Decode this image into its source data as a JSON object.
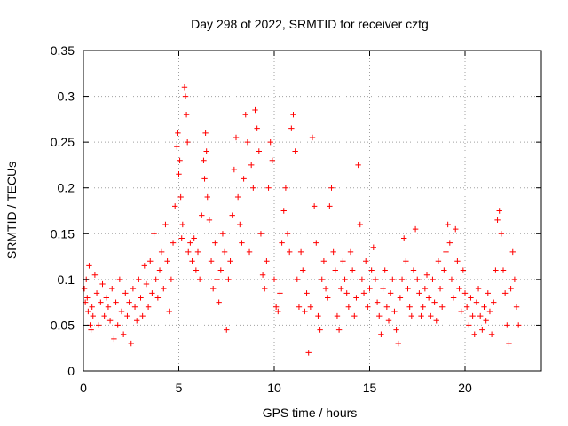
{
  "chart_data": {
    "type": "scatter",
    "title": "Day 298 of 2022, SRMTID for receiver cztg",
    "xlabel": "GPS time / hours",
    "ylabel": "SRMTID / TECUs",
    "xlim": [
      0,
      24
    ],
    "ylim": [
      0,
      0.35
    ],
    "xticks": [
      0,
      5,
      10,
      15,
      20
    ],
    "xtick_labels": [
      "0",
      "5",
      "10",
      "15",
      "20"
    ],
    "yticks": [
      0,
      0.05,
      0.1,
      0.15,
      0.2,
      0.25,
      0.3,
      0.35
    ],
    "ytick_labels": [
      "0",
      "0.05",
      "0.1",
      "0.15",
      "0.2",
      "0.25",
      "0.3",
      "0.35"
    ],
    "grid": true,
    "marker": "+",
    "series": [
      {
        "name": "SRMTID",
        "color": "#ff0000",
        "points": [
          [
            0.05,
            0.09
          ],
          [
            0.1,
            0.075
          ],
          [
            0.15,
            0.1
          ],
          [
            0.2,
            0.08
          ],
          [
            0.25,
            0.065
          ],
          [
            0.3,
            0.115
          ],
          [
            0.35,
            0.05
          ],
          [
            0.4,
            0.045
          ],
          [
            0.45,
            0.07
          ],
          [
            0.5,
            0.06
          ],
          [
            0.6,
            0.105
          ],
          [
            0.7,
            0.085
          ],
          [
            0.8,
            0.05
          ],
          [
            0.9,
            0.075
          ],
          [
            1.0,
            0.095
          ],
          [
            1.1,
            0.06
          ],
          [
            1.2,
            0.08
          ],
          [
            1.3,
            0.07
          ],
          [
            1.4,
            0.055
          ],
          [
            1.5,
            0.09
          ],
          [
            1.6,
            0.035
          ],
          [
            1.7,
            0.075
          ],
          [
            1.8,
            0.05
          ],
          [
            1.9,
            0.1
          ],
          [
            2.0,
            0.065
          ],
          [
            2.1,
            0.04
          ],
          [
            2.2,
            0.085
          ],
          [
            2.3,
            0.06
          ],
          [
            2.4,
            0.075
          ],
          [
            2.5,
            0.03
          ],
          [
            2.6,
            0.09
          ],
          [
            2.7,
            0.07
          ],
          [
            2.8,
            0.055
          ],
          [
            2.9,
            0.1
          ],
          [
            3.0,
            0.08
          ],
          [
            3.1,
            0.06
          ],
          [
            3.2,
            0.115
          ],
          [
            3.3,
            0.095
          ],
          [
            3.4,
            0.07
          ],
          [
            3.5,
            0.12
          ],
          [
            3.6,
            0.085
          ],
          [
            3.7,
            0.15
          ],
          [
            3.8,
            0.1
          ],
          [
            3.9,
            0.08
          ],
          [
            4.0,
            0.11
          ],
          [
            4.1,
            0.13
          ],
          [
            4.2,
            0.09
          ],
          [
            4.3,
            0.16
          ],
          [
            4.4,
            0.12
          ],
          [
            4.5,
            0.065
          ],
          [
            4.6,
            0.1
          ],
          [
            4.7,
            0.14
          ],
          [
            4.8,
            0.18
          ],
          [
            4.9,
            0.245
          ],
          [
            4.95,
            0.26
          ],
          [
            5.0,
            0.215
          ],
          [
            5.05,
            0.23
          ],
          [
            5.1,
            0.19
          ],
          [
            5.15,
            0.145
          ],
          [
            5.2,
            0.16
          ],
          [
            5.3,
            0.31
          ],
          [
            5.35,
            0.3
          ],
          [
            5.4,
            0.28
          ],
          [
            5.45,
            0.25
          ],
          [
            5.5,
            0.13
          ],
          [
            5.6,
            0.14
          ],
          [
            5.7,
            0.12
          ],
          [
            5.8,
            0.145
          ],
          [
            5.9,
            0.11
          ],
          [
            6.0,
            0.13
          ],
          [
            6.1,
            0.1
          ],
          [
            6.2,
            0.17
          ],
          [
            6.3,
            0.23
          ],
          [
            6.35,
            0.21
          ],
          [
            6.4,
            0.26
          ],
          [
            6.45,
            0.24
          ],
          [
            6.5,
            0.19
          ],
          [
            6.6,
            0.165
          ],
          [
            6.7,
            0.12
          ],
          [
            6.8,
            0.09
          ],
          [
            6.9,
            0.14
          ],
          [
            7.0,
            0.1
          ],
          [
            7.1,
            0.075
          ],
          [
            7.2,
            0.11
          ],
          [
            7.3,
            0.15
          ],
          [
            7.4,
            0.13
          ],
          [
            7.5,
            0.045
          ],
          [
            7.6,
            0.1
          ],
          [
            7.7,
            0.12
          ],
          [
            7.8,
            0.17
          ],
          [
            7.9,
            0.22
          ],
          [
            8.0,
            0.255
          ],
          [
            8.1,
            0.19
          ],
          [
            8.2,
            0.16
          ],
          [
            8.3,
            0.14
          ],
          [
            8.4,
            0.21
          ],
          [
            8.5,
            0.28
          ],
          [
            8.6,
            0.25
          ],
          [
            8.7,
            0.13
          ],
          [
            8.8,
            0.225
          ],
          [
            8.9,
            0.2
          ],
          [
            9.0,
            0.285
          ],
          [
            9.1,
            0.265
          ],
          [
            9.2,
            0.24
          ],
          [
            9.3,
            0.15
          ],
          [
            9.4,
            0.105
          ],
          [
            9.5,
            0.09
          ],
          [
            9.6,
            0.12
          ],
          [
            9.7,
            0.2
          ],
          [
            9.8,
            0.25
          ],
          [
            9.9,
            0.23
          ],
          [
            10.0,
            0.1
          ],
          [
            10.1,
            0.07
          ],
          [
            10.2,
            0.065
          ],
          [
            10.3,
            0.085
          ],
          [
            10.4,
            0.14
          ],
          [
            10.5,
            0.175
          ],
          [
            10.6,
            0.2
          ],
          [
            10.7,
            0.15
          ],
          [
            10.8,
            0.13
          ],
          [
            10.9,
            0.265
          ],
          [
            11.0,
            0.28
          ],
          [
            11.1,
            0.24
          ],
          [
            11.2,
            0.1
          ],
          [
            11.3,
            0.07
          ],
          [
            11.4,
            0.13
          ],
          [
            11.5,
            0.11
          ],
          [
            11.6,
            0.065
          ],
          [
            11.7,
            0.085
          ],
          [
            11.8,
            0.02
          ],
          [
            11.9,
            0.07
          ],
          [
            12.0,
            0.255
          ],
          [
            12.1,
            0.18
          ],
          [
            12.2,
            0.14
          ],
          [
            12.3,
            0.06
          ],
          [
            12.4,
            0.045
          ],
          [
            12.5,
            0.1
          ],
          [
            12.6,
            0.12
          ],
          [
            12.7,
            0.09
          ],
          [
            12.8,
            0.08
          ],
          [
            12.9,
            0.18
          ],
          [
            13.0,
            0.2
          ],
          [
            13.1,
            0.13
          ],
          [
            13.2,
            0.11
          ],
          [
            13.3,
            0.06
          ],
          [
            13.4,
            0.045
          ],
          [
            13.5,
            0.09
          ],
          [
            13.6,
            0.12
          ],
          [
            13.7,
            0.1
          ],
          [
            13.8,
            0.085
          ],
          [
            13.9,
            0.07
          ],
          [
            14.0,
            0.13
          ],
          [
            14.1,
            0.11
          ],
          [
            14.2,
            0.06
          ],
          [
            14.3,
            0.08
          ],
          [
            14.4,
            0.225
          ],
          [
            14.5,
            0.16
          ],
          [
            14.6,
            0.1
          ],
          [
            14.7,
            0.085
          ],
          [
            14.8,
            0.12
          ],
          [
            14.9,
            0.07
          ],
          [
            15.0,
            0.09
          ],
          [
            15.1,
            0.11
          ],
          [
            15.2,
            0.135
          ],
          [
            15.3,
            0.1
          ],
          [
            15.4,
            0.075
          ],
          [
            15.5,
            0.06
          ],
          [
            15.6,
            0.04
          ],
          [
            15.7,
            0.09
          ],
          [
            15.8,
            0.11
          ],
          [
            15.9,
            0.07
          ],
          [
            16.0,
            0.055
          ],
          [
            16.1,
            0.085
          ],
          [
            16.2,
            0.1
          ],
          [
            16.3,
            0.065
          ],
          [
            16.4,
            0.045
          ],
          [
            16.5,
            0.03
          ],
          [
            16.6,
            0.08
          ],
          [
            16.7,
            0.1
          ],
          [
            16.8,
            0.145
          ],
          [
            16.9,
            0.12
          ],
          [
            17.0,
            0.09
          ],
          [
            17.1,
            0.07
          ],
          [
            17.2,
            0.06
          ],
          [
            17.3,
            0.11
          ],
          [
            17.4,
            0.155
          ],
          [
            17.5,
            0.1
          ],
          [
            17.6,
            0.085
          ],
          [
            17.7,
            0.06
          ],
          [
            17.8,
            0.07
          ],
          [
            17.9,
            0.09
          ],
          [
            18.0,
            0.105
          ],
          [
            18.1,
            0.08
          ],
          [
            18.2,
            0.06
          ],
          [
            18.3,
            0.1
          ],
          [
            18.4,
            0.075
          ],
          [
            18.5,
            0.055
          ],
          [
            18.6,
            0.12
          ],
          [
            18.7,
            0.09
          ],
          [
            18.8,
            0.07
          ],
          [
            18.9,
            0.11
          ],
          [
            19.0,
            0.13
          ],
          [
            19.1,
            0.16
          ],
          [
            19.2,
            0.14
          ],
          [
            19.3,
            0.1
          ],
          [
            19.4,
            0.08
          ],
          [
            19.5,
            0.155
          ],
          [
            19.6,
            0.12
          ],
          [
            19.7,
            0.09
          ],
          [
            19.8,
            0.065
          ],
          [
            19.9,
            0.11
          ],
          [
            20.0,
            0.085
          ],
          [
            20.1,
            0.07
          ],
          [
            20.2,
            0.05
          ],
          [
            20.3,
            0.08
          ],
          [
            20.4,
            0.06
          ],
          [
            20.5,
            0.04
          ],
          [
            20.6,
            0.075
          ],
          [
            20.7,
            0.09
          ],
          [
            20.8,
            0.06
          ],
          [
            20.9,
            0.045
          ],
          [
            21.0,
            0.07
          ],
          [
            21.1,
            0.055
          ],
          [
            21.2,
            0.085
          ],
          [
            21.3,
            0.065
          ],
          [
            21.4,
            0.04
          ],
          [
            21.5,
            0.075
          ],
          [
            21.6,
            0.11
          ],
          [
            21.7,
            0.165
          ],
          [
            21.8,
            0.175
          ],
          [
            21.9,
            0.15
          ],
          [
            22.0,
            0.11
          ],
          [
            22.1,
            0.085
          ],
          [
            22.2,
            0.05
          ],
          [
            22.3,
            0.03
          ],
          [
            22.4,
            0.09
          ],
          [
            22.5,
            0.13
          ],
          [
            22.6,
            0.1
          ],
          [
            22.7,
            0.07
          ],
          [
            22.8,
            0.05
          ]
        ]
      }
    ]
  }
}
